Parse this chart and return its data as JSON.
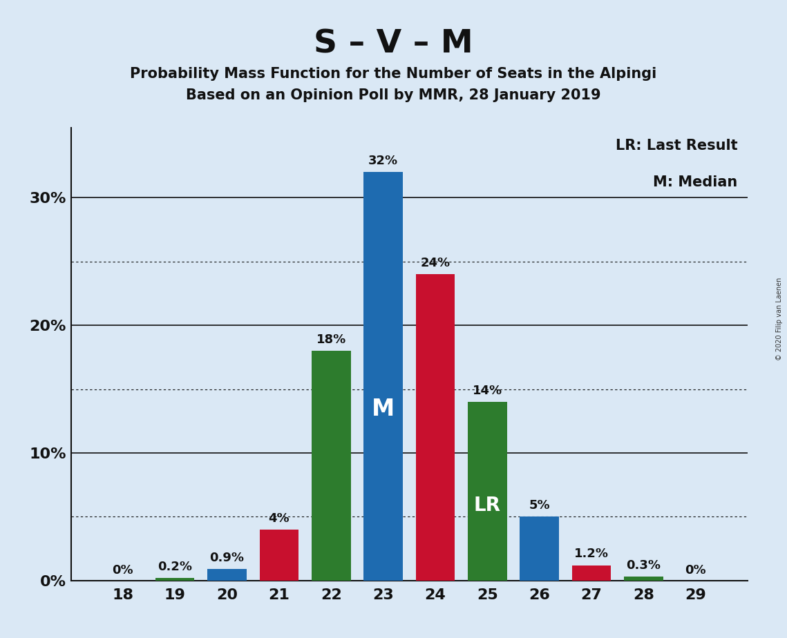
{
  "title_main": "S – V – M",
  "title_sub1": "Probability Mass Function for the Number of Seats in the Alpingi",
  "title_sub2": "Based on an Opinion Poll by MMR, 28 January 2019",
  "copyright": "© 2020 Filip van Laenen",
  "seats": [
    18,
    19,
    20,
    21,
    22,
    23,
    24,
    25,
    26,
    27,
    28,
    29
  ],
  "values": [
    0.0,
    0.2,
    0.9,
    4.0,
    18.0,
    32.0,
    24.0,
    14.0,
    5.0,
    1.2,
    0.3,
    0.0
  ],
  "colors": [
    "#2d7c2d",
    "#2d7c2d",
    "#1e6bb0",
    "#c8102e",
    "#2d7c2d",
    "#1e6bb0",
    "#c8102e",
    "#2d7c2d",
    "#1e6bb0",
    "#c8102e",
    "#2d7c2d",
    "#2d7c2d"
  ],
  "bar_labels": [
    "0%",
    "0.2%",
    "0.9%",
    "4%",
    "18%",
    "32%",
    "24%",
    "14%",
    "5%",
    "1.2%",
    "0.3%",
    "0%"
  ],
  "median_seat": 23,
  "lr_seat": 25,
  "background_color": "#dae8f5",
  "solid_yticks": [
    0,
    10,
    20,
    30
  ],
  "dotted_yticks": [
    5,
    15,
    25
  ],
  "ytick_labels_map": {
    "0": "0%",
    "10": "10%",
    "20": "20%",
    "30": "30%"
  },
  "legend_lr": "LR: Last Result",
  "legend_m": "M: Median",
  "ylim": [
    0,
    35.5
  ]
}
